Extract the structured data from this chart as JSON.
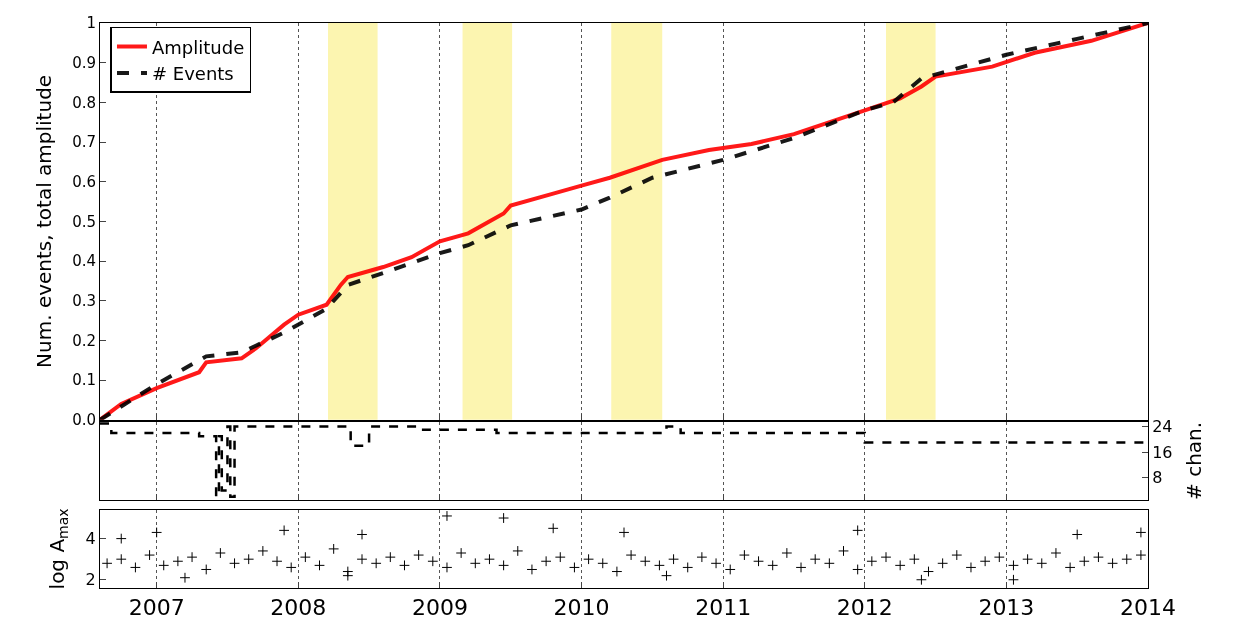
{
  "chart_data": [
    {
      "type": "line",
      "ylabel": "Num. events, total amplitude",
      "xlim": [
        2006.6,
        2014
      ],
      "ylim": [
        0,
        1
      ],
      "yticks": [
        {
          "value": 0,
          "label": "0.0"
        },
        0.1,
        0.2,
        0.3,
        0.4,
        0.5,
        0.6,
        0.7,
        0.8,
        0.9,
        1
      ],
      "xticks": [
        2007,
        2008,
        2009,
        2010,
        2011,
        2012,
        2013,
        2014
      ],
      "tick_labels": "y",
      "grid": "x",
      "legend": "top left",
      "bands": [
        {
          "axis": "x",
          "from": 2008.21,
          "to": 2008.56,
          "color": "#fcf5b0"
        },
        {
          "axis": "x",
          "from": 2009.16,
          "to": 2009.51,
          "color": "#fcf5b0"
        },
        {
          "axis": "x",
          "from": 2010.21,
          "to": 2010.57,
          "color": "#fcf5b0"
        },
        {
          "axis": "x",
          "from": 2012.15,
          "to": 2012.5,
          "color": "#fcf5b0"
        }
      ],
      "series": [
        {
          "name": "Amplitude",
          "color": "#ff0000",
          "line_style": "solid",
          "x": [
            2006.6,
            2006.75,
            2007,
            2007.3,
            2007.35,
            2007.6,
            2007.7,
            2007.9,
            2008.0,
            2008.2,
            2008.3,
            2008.35,
            2008.6,
            2008.8,
            2009.0,
            2009.2,
            2009.45,
            2009.5,
            2009.8,
            2010.0,
            2010.2,
            2010.57,
            2010.9,
            2011.2,
            2011.5,
            2012.0,
            2012.25,
            2012.4,
            2012.5,
            2012.9,
            2013.2,
            2013.6,
            2014
          ],
          "values": [
            0,
            0.04,
            0.08,
            0.12,
            0.145,
            0.155,
            0.18,
            0.24,
            0.265,
            0.29,
            0.34,
            0.36,
            0.385,
            0.41,
            0.45,
            0.47,
            0.52,
            0.54,
            0.57,
            0.59,
            0.61,
            0.655,
            0.68,
            0.695,
            0.72,
            0.78,
            0.81,
            0.84,
            0.865,
            0.89,
            0.925,
            0.955,
            1
          ]
        },
        {
          "name": "# Events",
          "color": "#000000",
          "line_style": "dashed",
          "x": [
            2006.6,
            2007,
            2007.35,
            2007.6,
            2007.9,
            2008.2,
            2008.35,
            2008.6,
            2009.0,
            2009.2,
            2009.5,
            2010.0,
            2010.2,
            2010.5,
            2011.0,
            2011.5,
            2012.0,
            2012.2,
            2012.4,
            2012.6,
            2013,
            2013.5,
            2014
          ],
          "values": [
            0,
            0.09,
            0.16,
            0.17,
            0.22,
            0.28,
            0.34,
            0.37,
            0.42,
            0.44,
            0.49,
            0.53,
            0.56,
            0.61,
            0.655,
            0.71,
            0.78,
            0.8,
            0.86,
            0.88,
            0.92,
            0.96,
            1
          ]
        }
      ]
    },
    {
      "type": "step",
      "y2label": "# chan.",
      "xlim": [
        2006.6,
        2014
      ],
      "y2lim": [
        1,
        25.5
      ],
      "y2ticks": [
        8,
        16,
        24
      ],
      "xticks": [
        2007,
        2008,
        2009,
        2010,
        2011,
        2012,
        2013,
        2014
      ],
      "tick_labels": "y",
      "grid": "x",
      "series": [
        {
          "axis": "y2",
          "color": "#000000",
          "line_style": "dashed",
          "x": [
            2006.6,
            2006.68,
            2007.3,
            2007.42,
            2007.44,
            2007.46,
            2007.5,
            2007.52,
            2007.55,
            2007.57,
            2008.37,
            2008.5,
            2008.85,
            2009.4,
            2010.6,
            2010.7,
            2012.0,
            2014
          ],
          "values": [
            25,
            22,
            21,
            2,
            21,
            4,
            24,
            2,
            24,
            24,
            18,
            24,
            23,
            22,
            24,
            22,
            19,
            19
          ]
        }
      ]
    },
    {
      "type": "scatter",
      "ylabel": "log A$_{max}$",
      "xlim": [
        2006.6,
        2014
      ],
      "ylim": [
        1.6,
        5.4
      ],
      "yticks": [
        2,
        4
      ],
      "xticks": [
        2007,
        2008,
        2009,
        2010,
        2011,
        2012,
        2013,
        2014
      ],
      "grid": "x",
      "marker": "cross",
      "series": [
        {
          "color": "#000000",
          "x": [
            2006.65,
            2006.75,
            2006.85,
            2006.95,
            2007.05,
            2007.15,
            2007.25,
            2007.35,
            2007.45,
            2007.55,
            2007.65,
            2007.75,
            2007.85,
            2007.95,
            2008.05,
            2008.15,
            2008.25,
            2008.35,
            2008.45,
            2008.55,
            2008.65,
            2008.75,
            2008.85,
            2008.95,
            2009.05,
            2009.15,
            2009.25,
            2009.35,
            2009.45,
            2009.55,
            2009.65,
            2009.75,
            2009.85,
            2009.95,
            2010.05,
            2010.15,
            2010.25,
            2010.35,
            2010.45,
            2010.55,
            2010.65,
            2010.75,
            2010.85,
            2010.95,
            2011.05,
            2011.15,
            2011.25,
            2011.35,
            2011.45,
            2011.55,
            2011.65,
            2011.75,
            2011.85,
            2011.95,
            2012.05,
            2012.15,
            2012.25,
            2012.35,
            2012.45,
            2012.55,
            2012.65,
            2012.75,
            2012.85,
            2012.95,
            2013.05,
            2013.15,
            2013.25,
            2013.35,
            2013.45,
            2013.55,
            2013.65,
            2013.75,
            2013.85,
            2013.95,
            2006.75,
            2007.0,
            2007.9,
            2008.45,
            2009.05,
            2009.45,
            2009.8,
            2010.3,
            2011.95,
            2013.5,
            2013.95,
            2007.2,
            2008.35,
            2010.6,
            2012.4,
            2013.05
          ],
          "values": [
            2.8,
            3.0,
            2.6,
            3.2,
            2.7,
            2.9,
            3.1,
            2.5,
            3.3,
            2.8,
            3.0,
            3.4,
            2.9,
            2.6,
            3.1,
            2.7,
            3.5,
            2.4,
            3.0,
            2.8,
            3.1,
            2.7,
            3.2,
            2.9,
            2.6,
            3.3,
            2.8,
            3.0,
            2.7,
            3.4,
            2.5,
            2.9,
            3.1,
            2.6,
            3.0,
            2.8,
            2.4,
            3.2,
            2.9,
            2.7,
            3.0,
            2.6,
            3.1,
            2.8,
            2.5,
            3.2,
            2.9,
            2.7,
            3.3,
            2.6,
            3.0,
            2.8,
            3.4,
            2.5,
            2.9,
            3.1,
            2.7,
            3.0,
            2.4,
            2.8,
            3.2,
            2.6,
            2.9,
            3.1,
            2.7,
            3.0,
            2.8,
            3.3,
            2.6,
            2.9,
            3.1,
            2.8,
            3.0,
            3.2,
            4.0,
            4.3,
            4.4,
            4.2,
            5.1,
            5.0,
            4.5,
            4.3,
            4.4,
            4.2,
            4.3,
            2.1,
            2.2,
            2.2,
            2.0,
            2.0
          ]
        }
      ]
    }
  ]
}
